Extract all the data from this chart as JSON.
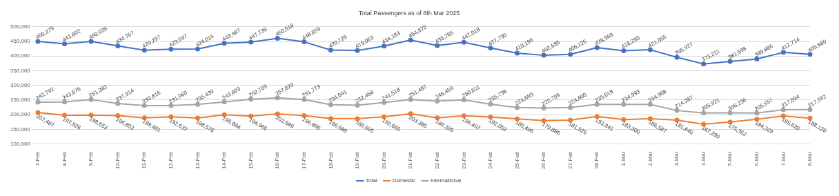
{
  "chart_data": {
    "type": "line",
    "title": "Total Passengers as of 8th Mar 2025",
    "categories": [
      "7-Feb",
      "8-Feb",
      "9-Feb",
      "10-Feb",
      "11-Feb",
      "12-Feb",
      "13-Feb",
      "14-Feb",
      "15-Feb",
      "16-Feb",
      "17-Feb",
      "18-Feb",
      "19-Feb",
      "20-Feb",
      "21-Feb",
      "22-Feb",
      "23-Feb",
      "24-Feb",
      "25-Feb",
      "26-Feb",
      "27-Feb",
      "28-Feb",
      "1-Mar",
      "2-Mar",
      "3-Mar",
      "4-Mar",
      "5-Mar",
      "6-Mar",
      "7-Mar",
      "8-Mar"
    ],
    "series": [
      {
        "name": "Total",
        "color": "#4472c4",
        "values": [
          450279,
          441602,
          450035,
          434767,
          420297,
          423697,
          424015,
          443487,
          447735,
          460518,
          448659,
          420729,
          419063,
          434183,
          454872,
          435785,
          447018,
          427790,
          410195,
          402685,
          406126,
          428959,
          418293,
          421555,
          395927,
          373211,
          381598,
          389886,
          412714,
          405680
        ],
        "value_labels": [
          "450,279",
          "441,602",
          "450,035",
          "434,767",
          "420,297",
          "423,697",
          "424,015",
          "443,487",
          "447,735",
          "460,518",
          "448,659",
          "420,729",
          "419,063",
          "434,183",
          "454,872",
          "435,785",
          "447,018",
          "427,790",
          "410,195",
          "402,685",
          "406,126",
          "428,959",
          "418,293",
          "421,555",
          "395,927",
          "373,211",
          "381,598",
          "389,886",
          "412,714",
          "405,680"
        ]
      },
      {
        "name": "Domestic",
        "color": "#ed7d31",
        "values": [
          207487,
          197926,
          198653,
          196853,
          189481,
          192637,
          188576,
          199884,
          194966,
          202689,
          196886,
          186688,
          186605,
          192665,
          203385,
          189326,
          196407,
          192052,
          185496,
          179886,
          181526,
          193941,
          183300,
          186587,
          181640,
          167290,
          175362,
          184329,
          195620,
          188128
        ],
        "value_labels": [
          "207,487",
          "197,926",
          "198,653",
          "196,853",
          "189,481",
          "192,637",
          "188,576",
          "199,884",
          "194,966",
          "202,689",
          "196,886",
          "186,688",
          "186,605",
          "192,665",
          "203,385",
          "189,326",
          "196,407",
          "192,052",
          "185,496",
          "179,886",
          "181,526",
          "193,941",
          "183,300",
          "186,587",
          "181,640",
          "167,290",
          "175,362",
          "184,329",
          "195,620",
          "188,128"
        ]
      },
      {
        "name": "International",
        "color": "#a5a5a5",
        "values": [
          242792,
          243676,
          251382,
          237914,
          230816,
          231060,
          235439,
          243603,
          252769,
          257829,
          251773,
          234041,
          232458,
          241518,
          251487,
          246459,
          250611,
          235738,
          224699,
          222799,
          224600,
          235018,
          234993,
          234968,
          214287,
          205921,
          206236,
          205557,
          217094,
          217552
        ],
        "value_labels": [
          "242,792",
          "243,676",
          "251,382",
          "237,914",
          "230,816",
          "231,060",
          "235,439",
          "243,603",
          "252,769",
          "257,829",
          "251,773",
          "234,041",
          "232,458",
          "241,518",
          "251,487",
          "246,459",
          "250,611",
          "235,738",
          "224,699",
          "222,799",
          "224,600",
          "235,018",
          "234,993",
          "234,968",
          "214,287",
          "205,921",
          "206,236",
          "205,557",
          "217,094",
          "217,552"
        ]
      }
    ],
    "ylim": [
      100000,
      500000
    ],
    "yticks": [
      {
        "value": 100000,
        "label": "100,000"
      },
      {
        "value": 150000,
        "label": "150,000"
      },
      {
        "value": 200000,
        "label": "200,000"
      },
      {
        "value": 250000,
        "label": "250,000"
      },
      {
        "value": 300000,
        "label": "300,000"
      },
      {
        "value": 350000,
        "label": "350,000"
      },
      {
        "value": 400000,
        "label": "400,000"
      },
      {
        "value": 450000,
        "label": "450,000"
      },
      {
        "value": 500000,
        "label": "500,000"
      }
    ],
    "grid": "y",
    "legend": "bottom",
    "marker": "circle",
    "line_style": "solid"
  }
}
